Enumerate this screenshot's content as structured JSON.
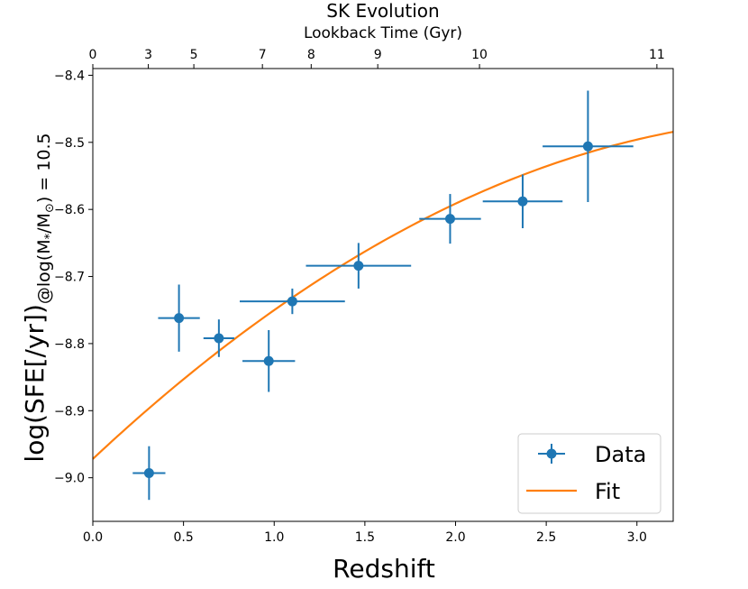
{
  "chart_data": {
    "type": "scatter",
    "title": "SK Evolution",
    "xlabel": "Redshift",
    "ylabel_main": "log(SFE[/yr])",
    "ylabel_sub": "@log(M",
    "ylabel_star": "*",
    "ylabel_sub2": "/M",
    "ylabel_sun": "⊙",
    "ylabel_sub3": ") = 10.5",
    "secondary_xlabel": "Lookback Time (Gyr)",
    "xlim": [
      0.0,
      3.2
    ],
    "ylim": [
      -9.065,
      -8.39
    ],
    "x_ticks": [
      0.0,
      0.5,
      1.0,
      1.5,
      2.0,
      2.5,
      3.0
    ],
    "x_tick_labels": [
      "0.0",
      "0.5",
      "1.0",
      "1.5",
      "2.0",
      "2.5",
      "3.0"
    ],
    "y_ticks": [
      -9.0,
      -8.9,
      -8.8,
      -8.7,
      -8.6,
      -8.5,
      -8.4
    ],
    "y_tick_labels": [
      "−9.0",
      "−8.9",
      "−8.8",
      "−8.7",
      "−8.6",
      "−8.5",
      "−8.4"
    ],
    "top_ticks": [
      {
        "z": 0.0,
        "label": "0"
      },
      {
        "z": 0.306,
        "label": "3"
      },
      {
        "z": 0.557,
        "label": "5"
      },
      {
        "z": 0.935,
        "label": "7"
      },
      {
        "z": 1.204,
        "label": "8"
      },
      {
        "z": 1.571,
        "label": "9"
      },
      {
        "z": 2.132,
        "label": "10"
      },
      {
        "z": 3.11,
        "label": "11"
      }
    ],
    "series": [
      {
        "name": "Data",
        "color": "#1f77b4",
        "points": [
          {
            "x": 0.31,
            "y": -8.993,
            "xerr": 0.09,
            "yerr": 0.04
          },
          {
            "x": 0.475,
            "y": -8.762,
            "xerr": 0.115,
            "yerr": 0.05
          },
          {
            "x": 0.695,
            "y": -8.792,
            "xerr": 0.085,
            "yerr": 0.028
          },
          {
            "x": 0.97,
            "y": -8.826,
            "xerr": 0.145,
            "yerr": 0.046
          },
          {
            "x": 1.1,
            "y": -8.737,
            "xerr": 0.29,
            "yerr": 0.019
          },
          {
            "x": 1.465,
            "y": -8.684,
            "xerr": 0.29,
            "yerr": 0.034
          },
          {
            "x": 1.97,
            "y": -8.614,
            "xerr": 0.17,
            "yerr": 0.037
          },
          {
            "x": 2.37,
            "y": -8.588,
            "xerr": 0.22,
            "yerr": 0.04
          },
          {
            "x": 2.73,
            "y": -8.506,
            "xerr": 0.25,
            "yerr": 0.083
          }
        ]
      },
      {
        "name": "Fit",
        "color": "#ff7f0e",
        "fit": {
          "a": -8.972,
          "b": 0.2535,
          "c": -0.0316
        }
      }
    ],
    "legend": {
      "location": "bottom-right",
      "entries": [
        "Data",
        "Fit"
      ]
    },
    "grid": false
  }
}
